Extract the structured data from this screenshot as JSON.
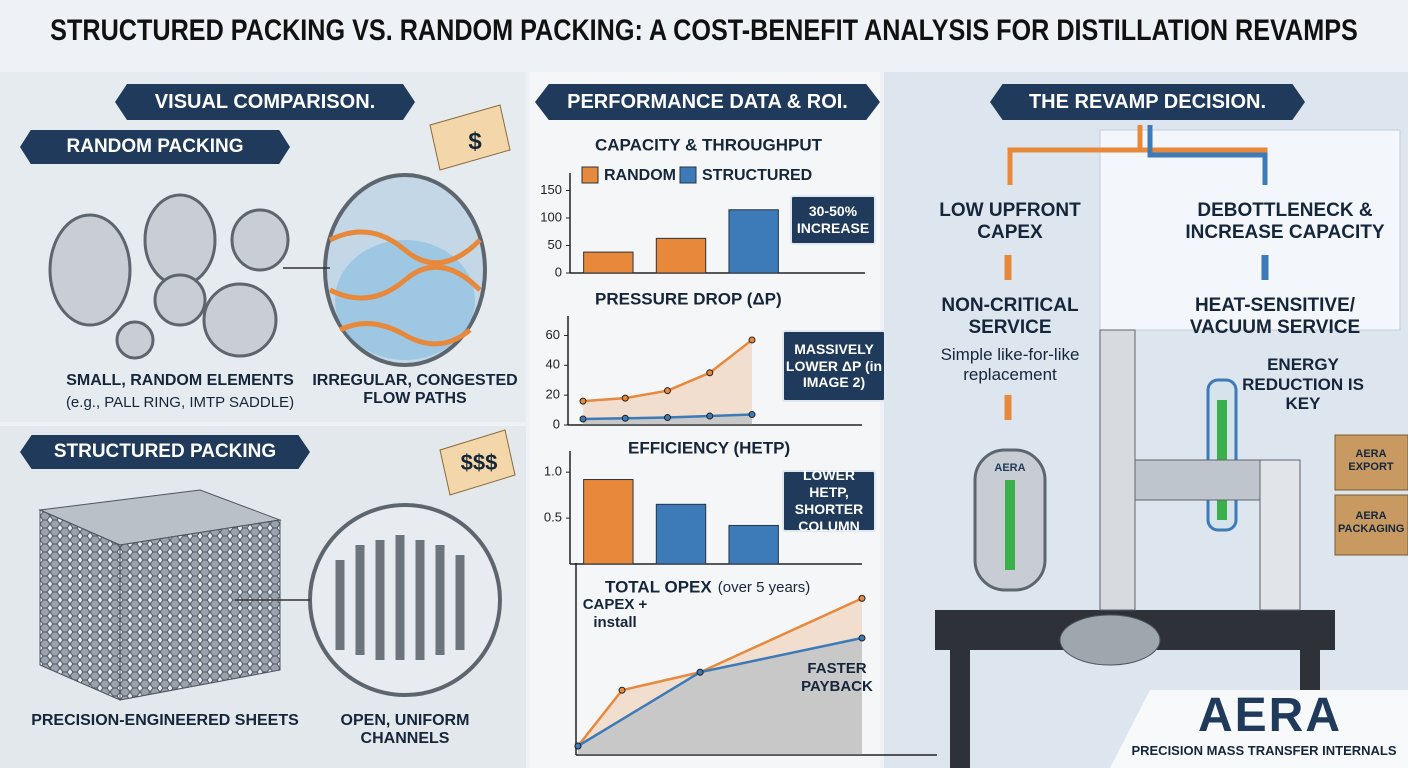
{
  "title": "STRUCTURED PACKING VS. RANDOM PACKING: A COST-BENEFIT ANALYSIS FOR DISTILLATION REVAMPS",
  "visual": {
    "heading": "VISUAL COMPARISON.",
    "random": {
      "heading": "RANDOM PACKING",
      "price": "$",
      "caption1": "SMALL, RANDOM ELEMENTS",
      "caption1_sub": "(e.g., PALL RING, IMTP SADDLE)",
      "caption2": "IRREGULAR, CONGESTED FLOW PATHS"
    },
    "structured": {
      "heading": "STRUCTURED PACKING",
      "price": "$$$",
      "caption1": "PRECISION-ENGINEERED SHEETS",
      "caption2": "OPEN, UNIFORM CHANNELS"
    }
  },
  "performance": {
    "heading": "PERFORMANCE DATA & ROI."
  },
  "chart_data": [
    {
      "type": "bar",
      "title": "CAPACITY & THROUGHPUT",
      "categories": [
        null,
        null,
        null
      ],
      "series": [
        {
          "name": "RANDOM",
          "color": "#e8883a",
          "values": [
            38,
            63,
            null
          ]
        },
        {
          "name": "STRUCTURED",
          "color": "#3d7ab8",
          "values": [
            null,
            null,
            115
          ]
        }
      ],
      "ylim": [
        0,
        160
      ],
      "yticks": [
        0,
        50,
        100,
        150
      ],
      "legend": true,
      "annotations": [
        "30-50% INCREASE"
      ]
    },
    {
      "type": "line",
      "title": "PRESSURE DROP (ΔP)",
      "categories": [
        null,
        null,
        null,
        null,
        null
      ],
      "series": [
        {
          "name": "RANDOM",
          "color": "#e8883a",
          "values": [
            16,
            18,
            23,
            35,
            57
          ]
        },
        {
          "name": "STRUCTURED",
          "color": "#3d7ab8",
          "values": [
            4,
            4.5,
            5,
            6,
            7
          ]
        }
      ],
      "ylim": [
        0,
        65
      ],
      "yticks": [
        0,
        20,
        40,
        60
      ],
      "annotations": [
        "MASSIVELY LOWER ΔP (in IMAGE 2)"
      ]
    },
    {
      "type": "bar",
      "title": "EFFICIENCY (HETP)",
      "categories": [
        null,
        null,
        null
      ],
      "series": [
        {
          "name": "RANDOM",
          "color": "#e8883a",
          "values": [
            0.92,
            null,
            null
          ]
        },
        {
          "name": "STRUCTURED",
          "color": "#3d7ab8",
          "values": [
            null,
            0.65,
            0.42
          ]
        }
      ],
      "ylim": [
        0,
        1.1
      ],
      "yticks": [
        {
          "value": 0.5,
          "label": "0.5"
        },
        {
          "value": 1,
          "label": "1.0"
        }
      ],
      "annotations": [
        "LOWER HETP, SHORTER COLUMN"
      ]
    },
    {
      "type": "line",
      "title": "TOTAL OPEX",
      "subtitle": "(over 5 years)",
      "series": [
        {
          "name": "RANDOM",
          "color": "#e8883a",
          "x": [
            0,
            1.55,
            4.3,
            10
          ],
          "values": [
            5,
            36,
            46,
            87
          ]
        },
        {
          "name": "STRUCTURED",
          "color": "#3d7ab8",
          "x": [
            0,
            4.3,
            10
          ],
          "values": [
            5,
            46,
            65
          ]
        }
      ],
      "xlim": [
        0,
        10
      ],
      "ylim": [
        0,
        100
      ],
      "annotations": [
        "CAPEX + install",
        "FASTER PAYBACK"
      ]
    }
  ],
  "decision": {
    "heading": "THE REVAMP DECISION.",
    "left": [
      "LOW UPFRONT CAPEX",
      "NON-CRITICAL SERVICE",
      "Simple like-for-like replacement"
    ],
    "right": [
      "DEBOTTLENECK & INCREASE CAPACITY",
      "HEAT-SENSITIVE/ VACUUM SERVICE",
      "ENERGY REDUCTION IS KEY"
    ]
  },
  "brand": {
    "logo": "AERA",
    "tagline": "PRECISION MASS TRANSFER INTERNALS",
    "vessel": "AERA",
    "box1": "AERA EXPORT",
    "box2": "AERA PACKAGING"
  }
}
